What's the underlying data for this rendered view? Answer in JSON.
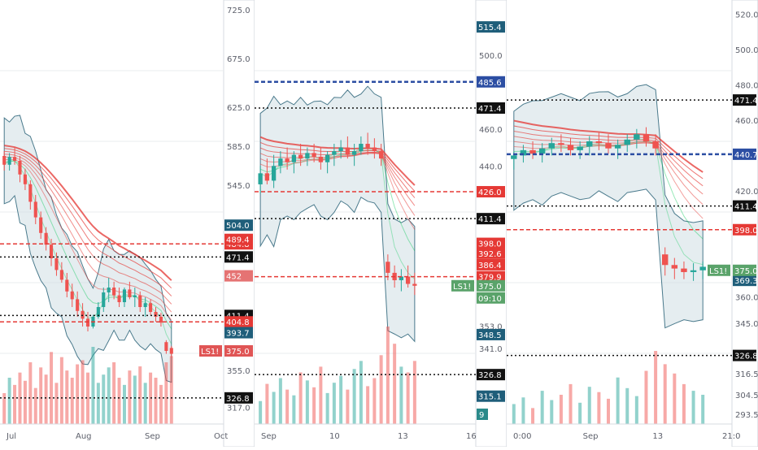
{
  "chart_data": [
    {
      "type": "candlestick",
      "price_axis_ticks": [
        "725.0",
        "675.0",
        "625.0",
        "585.0",
        "545.0",
        "355.0",
        "317.0"
      ],
      "ylim": [
        300,
        735
      ],
      "x_ticks": [
        "Jul",
        "Aug",
        "Sep",
        "Oct"
      ],
      "candles": [
        [
          575,
          580,
          560,
          566
        ],
        [
          566,
          578,
          560,
          574
        ],
        [
          574,
          584,
          566,
          570
        ],
        [
          570,
          575,
          548,
          556
        ],
        [
          556,
          562,
          540,
          546
        ],
        [
          546,
          550,
          520,
          528
        ],
        [
          528,
          535,
          505,
          512
        ],
        [
          512,
          518,
          490,
          496
        ],
        [
          496,
          502,
          478,
          484
        ],
        [
          484,
          490,
          462,
          470
        ],
        [
          470,
          476,
          452,
          458
        ],
        [
          458,
          466,
          445,
          448
        ],
        [
          448,
          455,
          430,
          436
        ],
        [
          436,
          444,
          420,
          428
        ],
        [
          428,
          436,
          410,
          416
        ],
        [
          416,
          424,
          400,
          408
        ],
        [
          408,
          415,
          395,
          400
        ],
        [
          400,
          412,
          398,
          410
        ],
        [
          410,
          425,
          408,
          420
        ],
        [
          420,
          440,
          415,
          435
        ],
        [
          435,
          450,
          425,
          440
        ],
        [
          440,
          446,
          428,
          432
        ],
        [
          432,
          440,
          420,
          425
        ],
        [
          425,
          440,
          420,
          438
        ],
        [
          438,
          446,
          428,
          430
        ],
        [
          430,
          440,
          420,
          432
        ],
        [
          432,
          436,
          415,
          420
        ],
        [
          420,
          430,
          410,
          424
        ],
        [
          424,
          428,
          412,
          415
        ],
        [
          415,
          420,
          405,
          410
        ],
        [
          410,
          414,
          400,
          404
        ],
        [
          384,
          386,
          372,
          375
        ],
        [
          378,
          380,
          368,
          372
        ]
      ],
      "volume": [
        30,
        45,
        38,
        50,
        42,
        60,
        35,
        55,
        48,
        70,
        40,
        65,
        52,
        45,
        58,
        62,
        50,
        75,
        40,
        48,
        55,
        60,
        45,
        38,
        52,
        47,
        56,
        40,
        50,
        45,
        38,
        60,
        66
      ],
      "levels": [
        {
          "price": "484.8",
          "bg": "#e53935",
          "style": "dashed-red"
        },
        {
          "price": "471.4",
          "bg": "#111111",
          "style": "dotted-black"
        },
        {
          "price": "411.4",
          "bg": "#111111",
          "style": "dotted-black"
        },
        {
          "price": "404.8",
          "bg": "#e53935",
          "style": "dashed-red"
        },
        {
          "price": "326.8",
          "bg": "#111111",
          "style": "dotted-black"
        }
      ],
      "labels": [
        {
          "price": "504.0",
          "text": "504.0",
          "bg": "#1f5e7a"
        },
        {
          "price": "393.7",
          "text": "393.7",
          "bg": "#1f5e7a"
        },
        {
          "price": "452",
          "text": "452",
          "bg": "#e57373"
        }
      ],
      "ls_tag": {
        "tag": "LS1!",
        "price": "375.0",
        "bg": "#e05555"
      },
      "mid_red_text": "489.4"
    },
    {
      "type": "candlestick",
      "price_axis_ticks": [
        "500.0",
        "460.0",
        "440.0",
        "353.0",
        "341.0"
      ],
      "ylim": [
        300,
        530
      ],
      "x_ticks": [
        "Sep",
        "10",
        "13",
        "16"
      ],
      "candles": [
        [
          430,
          440,
          425,
          436
        ],
        [
          436,
          444,
          430,
          432
        ],
        [
          432,
          446,
          428,
          440
        ],
        [
          440,
          448,
          436,
          444
        ],
        [
          444,
          450,
          438,
          442
        ],
        [
          442,
          448,
          436,
          446
        ],
        [
          446,
          452,
          440,
          444
        ],
        [
          444,
          450,
          440,
          447
        ],
        [
          447,
          452,
          442,
          445
        ],
        [
          445,
          450,
          438,
          442
        ],
        [
          442,
          448,
          436,
          446
        ],
        [
          446,
          452,
          440,
          448
        ],
        [
          448,
          454,
          444,
          450
        ],
        [
          450,
          456,
          444,
          446
        ],
        [
          446,
          452,
          440,
          448
        ],
        [
          448,
          456,
          446,
          452
        ],
        [
          452,
          458,
          446,
          450
        ],
        [
          450,
          455,
          444,
          448
        ],
        [
          448,
          452,
          440,
          444
        ],
        [
          388,
          392,
          378,
          382
        ],
        [
          382,
          386,
          374,
          378
        ],
        [
          378,
          384,
          372,
          380
        ],
        [
          380,
          386,
          374,
          376
        ],
        [
          376,
          382,
          370,
          375
        ]
      ],
      "volume": [
        20,
        35,
        28,
        40,
        30,
        25,
        45,
        38,
        32,
        50,
        27,
        36,
        42,
        30,
        48,
        55,
        33,
        40,
        60,
        85,
        70,
        50,
        45,
        55
      ],
      "levels": [
        {
          "price": "485.6",
          "bg": "#2c4ea3",
          "style": "dashed-blue"
        },
        {
          "price": "471.4",
          "bg": "#111111",
          "style": "dotted-black"
        },
        {
          "price": "426.0",
          "bg": "#e53935",
          "style": "dashed-red"
        },
        {
          "price": "411.4",
          "bg": "#111111",
          "style": "dotted-black"
        },
        {
          "price": "379.9",
          "bg": "#e53935",
          "style": "dashed-red"
        },
        {
          "price": "326.8",
          "bg": "#111111",
          "style": "dotted-black"
        }
      ],
      "labels": [
        {
          "price": "515.4",
          "text": "515.4",
          "bg": "#1f5e7a"
        },
        {
          "price": "392.6",
          "text": "392.6",
          "bg": "#e53935"
        },
        {
          "price": "386.4",
          "text": "386.4",
          "bg": "#e53935"
        },
        {
          "price": "348.5",
          "text": "348.5",
          "bg": "#1f5e7a"
        },
        {
          "price": "315.1",
          "text": "315.1",
          "bg": "#1f5e7a"
        }
      ],
      "ls_tag": {
        "tag": "LS1!",
        "price": "375.0",
        "bg": "#5aa36a",
        "sub": "09:10"
      },
      "extra_red_labels": [
        "398.0"
      ],
      "corner_text": "9"
    },
    {
      "type": "candlestick",
      "price_axis_ticks": [
        "520.0",
        "500.0",
        "480.0",
        "460.0",
        "420.0",
        "360.0",
        "345.0",
        "316.5",
        "304.5",
        "293.5"
      ],
      "ylim": [
        288,
        528
      ],
      "x_ticks": [
        "0:00",
        "Sep",
        "13",
        "21:0"
      ],
      "candles": [
        [
          438,
          442,
          432,
          440
        ],
        [
          440,
          446,
          436,
          443
        ],
        [
          443,
          448,
          438,
          441
        ],
        [
          441,
          447,
          436,
          444
        ],
        [
          444,
          450,
          440,
          447
        ],
        [
          447,
          452,
          442,
          446
        ],
        [
          446,
          450,
          440,
          443
        ],
        [
          443,
          448,
          438,
          445
        ],
        [
          445,
          451,
          440,
          448
        ],
        [
          448,
          453,
          443,
          447
        ],
        [
          447,
          452,
          441,
          444
        ],
        [
          444,
          449,
          438,
          446
        ],
        [
          446,
          452,
          442,
          449
        ],
        [
          449,
          455,
          444,
          452
        ],
        [
          452,
          456,
          445,
          448
        ],
        [
          448,
          452,
          440,
          444
        ],
        [
          384,
          388,
          372,
          378
        ],
        [
          378,
          382,
          370,
          376
        ],
        [
          376,
          380,
          370,
          374
        ],
        [
          374,
          379,
          369,
          375
        ],
        [
          375,
          380,
          370,
          377
        ]
      ],
      "volume": [
        15,
        20,
        12,
        25,
        18,
        22,
        30,
        16,
        28,
        24,
        19,
        35,
        27,
        21,
        40,
        55,
        45,
        38,
        30,
        25,
        22
      ],
      "levels": [
        {
          "price": "471.4",
          "bg": "#111111",
          "style": "dotted-black"
        },
        {
          "price": "440.7",
          "bg": "#2c4ea3",
          "style": "dashed-blue"
        },
        {
          "price": "411.4",
          "bg": "#111111",
          "style": "dotted-black"
        },
        {
          "price": "398.0",
          "bg": "#e53935",
          "style": "dashed-red"
        },
        {
          "price": "326.8",
          "bg": "#111111",
          "style": "dotted-black"
        }
      ],
      "labels": [
        {
          "price": "369.3",
          "text": "369.3",
          "bg": "#1f5e7a"
        }
      ],
      "ls_tag": {
        "tag": "LS1!",
        "price": "375.0",
        "bg": "#5aa36a"
      }
    }
  ],
  "colors": {
    "bull": "#26a69a",
    "bear": "#ef5350",
    "ribbon_up": "#00c853",
    "ribbon_down": "#e53935",
    "ma_blue": "#2c4ea3",
    "band": "#cfdfe3",
    "band_line": "#4a7a8c",
    "grid": "#e9ecef"
  }
}
